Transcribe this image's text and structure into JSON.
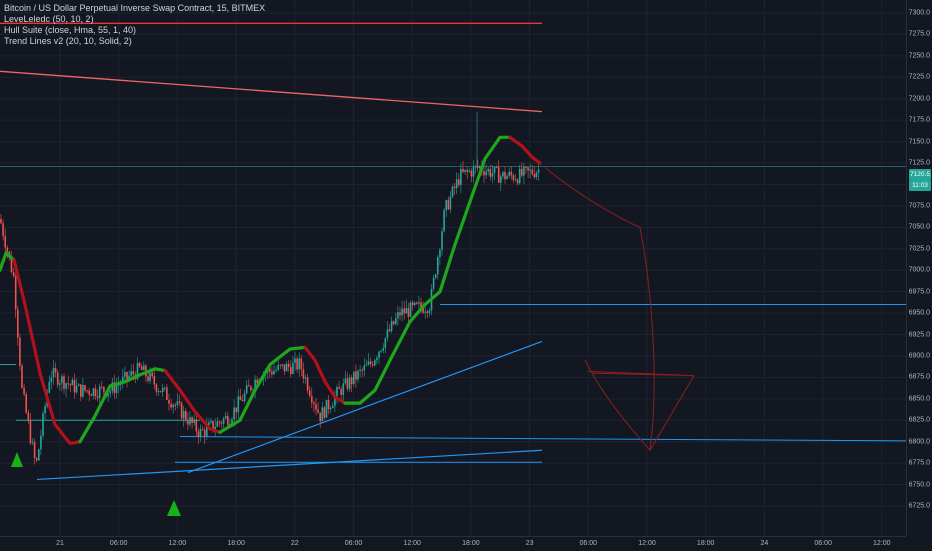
{
  "legend": {
    "title": "Bitcoin / US Dollar Perpetual Inverse Swap Contract, 15, BITMEX",
    "ind1": "LeveLeledc (50, 10, 2)",
    "ind2": "Hull Suite (close, Hma, 55, 1, 40)",
    "ind3": "Trend Lines v2 (20, 10, Solid, 2)"
  },
  "price_axis": {
    "ticks": [
      "7300.0",
      "7275.0",
      "7250.0",
      "7225.0",
      "7200.0",
      "7175.0",
      "7150.0",
      "7125.0",
      "7100.0",
      "7075.0",
      "7050.0",
      "7025.0",
      "7000.0",
      "6975.0",
      "6950.0",
      "6925.0",
      "6900.0",
      "6875.0",
      "6850.0",
      "6825.0",
      "6800.0",
      "6775.0",
      "6750.0",
      "6725.0"
    ],
    "current_price": "7120.5",
    "countdown": "11:03"
  },
  "time_axis": {
    "ticks": [
      "21",
      "06:00",
      "12:00",
      "18:00",
      "22",
      "06:00",
      "12:00",
      "18:00",
      "23",
      "06:00",
      "12:00",
      "18:00",
      "24",
      "06:00",
      "12:00"
    ]
  },
  "colors": {
    "bg": "#131722",
    "grid": "#1f2330",
    "up_candle": "#26a69a",
    "down_candle": "#ef5350",
    "hull_up": "#1ea71e",
    "hull_down": "#b2101a",
    "trend_blue": "#2196f3",
    "resistance_red": "#e53935",
    "drawing": "#8b1f1f",
    "arrow_green": "#17b217"
  }
}
